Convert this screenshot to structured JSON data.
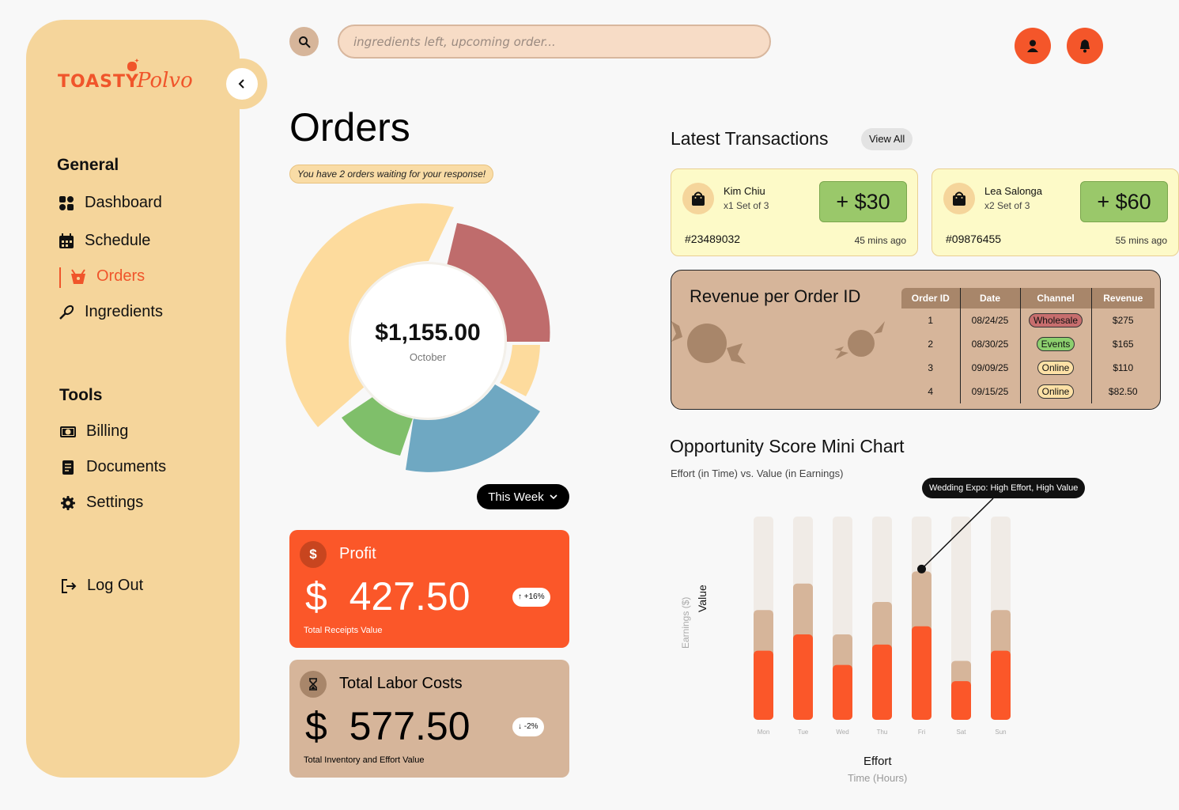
{
  "brand": {
    "name": "TOASTY",
    "script": "Polvo"
  },
  "sidebar": {
    "general_title": "General",
    "general_items": [
      {
        "label": "Dashboard",
        "icon": "dashboard-icon"
      },
      {
        "label": "Schedule",
        "icon": "calendar-icon"
      },
      {
        "label": "Orders",
        "icon": "basket-icon",
        "active": true
      },
      {
        "label": "Ingredients",
        "icon": "whisk-icon"
      }
    ],
    "tools_title": "Tools",
    "tools_items": [
      {
        "label": "Billing",
        "icon": "billing-icon"
      },
      {
        "label": "Documents",
        "icon": "document-icon"
      },
      {
        "label": "Settings",
        "icon": "gear-icon"
      }
    ],
    "logout_label": "Log Out"
  },
  "search": {
    "placeholder": "ingredients left, upcoming order..."
  },
  "orders": {
    "title": "Orders",
    "notice": "You have 2 orders waiting for your response!",
    "total": "$1,155.00",
    "month": "October",
    "period_button": "This Week",
    "segments_colors": [
      "#fddb9d",
      "#bf6c6c",
      "#fddb9d",
      "#6fa8c2",
      "#7fbf6a"
    ]
  },
  "profit": {
    "label": "Profit",
    "currency": "$",
    "value": "427.50",
    "change": "+16%",
    "sub": "Total Receipts Value",
    "icon_glyph": "$"
  },
  "labor": {
    "label": "Total Labor Costs",
    "currency": "$",
    "value": "577.50",
    "change": "-2%",
    "sub": "Total Inventory and Effort Value"
  },
  "transactions": {
    "title": "Latest Transactions",
    "view_all": "View All",
    "items": [
      {
        "name": "Kim Chiu",
        "qty": "x1 Set of 3",
        "amount": "+ $30",
        "id": "#23489032",
        "time": "45 mins ago"
      },
      {
        "name": "Lea Salonga",
        "qty": "x2 Set of 3",
        "amount": "+ $60",
        "id": "#09876455",
        "time": "55 mins ago"
      }
    ]
  },
  "revenue": {
    "title": "Revenue per Order ID",
    "columns": [
      "Order ID",
      "Date",
      "Channel",
      "Revenue"
    ],
    "rows": [
      {
        "id": "1",
        "date": "08/24/25",
        "channel": "Wholesale",
        "revenue": "$275"
      },
      {
        "id": "2",
        "date": "08/30/25",
        "channel": "Events",
        "revenue": "$165"
      },
      {
        "id": "3",
        "date": "09/09/25",
        "channel": "Online",
        "revenue": "$110"
      },
      {
        "id": "4",
        "date": "09/15/25",
        "channel": "Online",
        "revenue": "$82.50"
      }
    ],
    "channel_colors": {
      "Wholesale": "#c76e6e",
      "Events": "#8ccf6e",
      "Online": "#fde1a6"
    }
  },
  "opportunity": {
    "title": "Opportunity Score Mini Chart",
    "subtitle": "Effort (in Time) vs. Value (in Earnings)",
    "tooltip": "Wedding Expo: High Effort, High Value",
    "y_label": "Value",
    "y_sublabel": "Earnings ($)",
    "x_label": "Effort",
    "x_sublabel": "Time (Hours)"
  },
  "chart_data": {
    "type": "bar",
    "categories": [
      "Mon",
      "Tue",
      "Wed",
      "Thu",
      "Fri",
      "Sat",
      "Sun"
    ],
    "series": [
      {
        "name": "",
        "values": [
          54,
          67,
          42,
          58,
          73,
          29,
          54
        ],
        "color": "#d6b59a"
      },
      {
        "name": "",
        "values": [
          34,
          42,
          27,
          37,
          46,
          19,
          34
        ],
        "color": "#fb5729"
      }
    ],
    "ylim": [
      0,
      100
    ],
    "track_color": "#f0ebe6",
    "highlight_index": 4,
    "xlabel": "Effort",
    "ylabel": "Value"
  }
}
